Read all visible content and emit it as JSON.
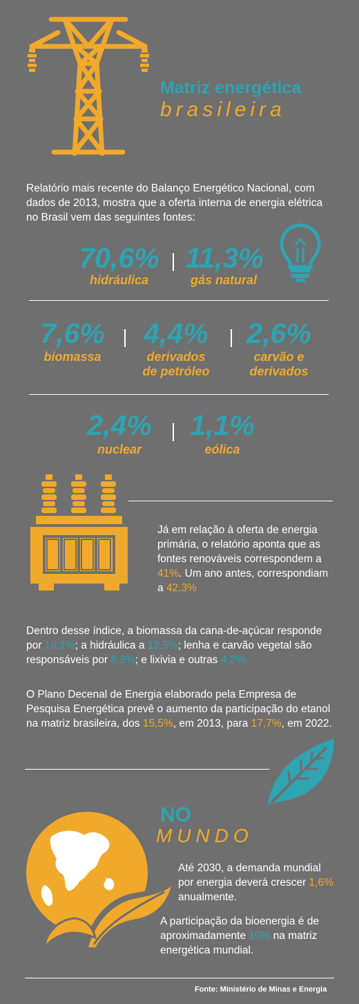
{
  "header": {
    "title_line1": "Matriz energética",
    "title_line2": "brasileira"
  },
  "intro": "Relatório mais recente do Balanço Energético Nacional, com dados de 2013, mostra que a oferta interna de energia elétrica no Brasil vem das seguintes fontes:",
  "sources": [
    {
      "pct": "70,6%",
      "label": "hidráulica"
    },
    {
      "pct": "11,3%",
      "label": "gás natural"
    },
    {
      "pct": "7,6%",
      "label": "biomassa"
    },
    {
      "pct": "4,4%",
      "label_line1": "derivados",
      "label_line2": "de petróleo"
    },
    {
      "pct": "2,6%",
      "label_line1": "carvão e",
      "label_line2": "derivados"
    },
    {
      "pct": "2,4%",
      "label": "nuclear"
    },
    {
      "pct": "1,1%",
      "label": "eólica"
    }
  ],
  "primary": {
    "text1": "Já em relação à oferta de energia primária, o relatório aponta que as fontes renováveis correspondem a ",
    "v1": "41%",
    "text2": ". Um ano antes, correspondiam a ",
    "v2": "42,3%"
  },
  "breakdown": {
    "t1": "Dentro desse índice, a biomassa da cana-de-açúcar responde por ",
    "v1": "16,1%",
    "t2": "; a hidráulica a ",
    "v2": "12,5%",
    "t3": "; lenha e carvão vegetal são responsáveis por ",
    "v3": "8,3%",
    "t4": "; e lixivia e outras ",
    "v4": "4,2%."
  },
  "plan": {
    "t1": "O Plano Decenal de Energia elaborado pela Empresa de Pesquisa Energética prevê o aumento da participação do etanol na matriz brasileira, dos ",
    "v1": "15,5%",
    "t2": ", em 2013, para ",
    "v2": "17,7%",
    "t3": ", em 2022."
  },
  "world": {
    "title1": "NO",
    "title2": "MUNDO",
    "p1a": "Até 2030, a demanda mundial por energia deverá crescer ",
    "p1v": "1,6%",
    "p1b": " anualmente.",
    "p2a": "A participação da bioenergia é de aproximadamente ",
    "p2v": "10%",
    "p2b": " na matriz energética mundial."
  },
  "footer": {
    "source": "Fonte: Ministério de Minas e Energia"
  },
  "colors": {
    "background": "#6f6f6f",
    "teal": "#2fa4b3",
    "orange": "#f0a92a",
    "white": "#ffffff"
  },
  "icons": [
    "transmission-tower-icon",
    "light-bulb-icon",
    "transformer-icon",
    "leaf-icon",
    "globe-plant-icon"
  ]
}
